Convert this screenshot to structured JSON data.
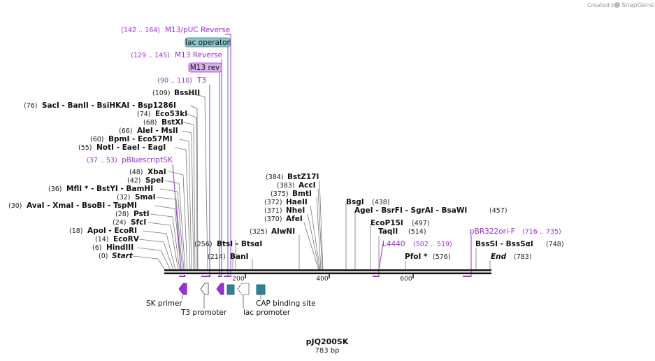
{
  "credit": {
    "prefix": "Created by",
    "brand": "SnapGene"
  },
  "plasmid": {
    "name": "pJQ200SK",
    "length": "783 bp"
  },
  "colors": {
    "purple": "#9b30d9",
    "teal": "#2f8293",
    "teal_light": "#8fc3c9",
    "mauve": "#d9b3ea"
  },
  "top_features": [
    {
      "range": "(142 .. 164)",
      "name": "M13/pUC Reverse"
    },
    {
      "box": "lac operator"
    },
    {
      "range": "(129 .. 145)",
      "name": "M13 Reverse"
    },
    {
      "box": "M13 rev"
    },
    {
      "range": "(90 .. 110)",
      "name": "T3"
    }
  ],
  "left_sites": [
    {
      "pos": "(109)",
      "names": "BssHII"
    },
    {
      "pos": "(76)",
      "names": "SacI   - BanII   - BsiHKAI   - Bsp1286I"
    },
    {
      "pos": "(74)",
      "names": "Eco53kI"
    },
    {
      "pos": "(68)",
      "names": "BstXI"
    },
    {
      "pos": "(66)",
      "names": "AleI   - MslI"
    },
    {
      "pos": "(60)",
      "names": "BpmI   - Eco57MI"
    },
    {
      "pos": "(55)",
      "names": "NotI   - EaeI   - EagI"
    },
    {
      "pos": "(37 .. 53)",
      "names": "pBluescriptSK"
    },
    {
      "pos": "(48)",
      "names": "XbaI"
    },
    {
      "pos": "(42)",
      "names": "SpeI"
    },
    {
      "pos": "(36)",
      "names": "MflI *  - BstYI   - BamHI"
    },
    {
      "pos": "(32)",
      "names": "SmaI"
    },
    {
      "pos": "(30)",
      "names": "AvaI   - XmaI   - BsoBI   - TspMI"
    },
    {
      "pos": "(28)",
      "names": "PstI"
    },
    {
      "pos": "(24)",
      "names": "SfcI"
    },
    {
      "pos": "(18)",
      "names": "ApoI   - EcoRI"
    },
    {
      "pos": "(14)",
      "names": "EcoRV"
    },
    {
      "pos": "(6)",
      "names": "HindIII"
    },
    {
      "pos": "(0)",
      "names": "Start"
    }
  ],
  "mid_sites": [
    {
      "pos": "(256)",
      "names": "BtsI   - BtsαI"
    },
    {
      "pos": "(214)",
      "names": "BanI"
    },
    {
      "pos": "(325)",
      "names": "AlwNI"
    },
    {
      "pos": "(384)",
      "names": "BstZ17I"
    },
    {
      "pos": "(383)",
      "names": "AccI"
    },
    {
      "pos": "(375)",
      "names": "BmtI"
    },
    {
      "pos": "(372)",
      "names": "HaeII"
    },
    {
      "pos": "(371)",
      "names": "NheI"
    },
    {
      "pos": "(370)",
      "names": "AfeI"
    }
  ],
  "right_sites": [
    {
      "names": "BsgI",
      "pos": "(438)"
    },
    {
      "names": "AgeI   - BsrFI   - SgrAI   - BsaWI",
      "pos": "(457)"
    },
    {
      "names": "EcoP15I",
      "pos": "(497)"
    },
    {
      "names": "TaqII",
      "pos": "(514)"
    },
    {
      "names": "L4440",
      "pos": "(502 .. 519)"
    },
    {
      "names": "PfoI *",
      "pos": "(576)"
    },
    {
      "names": "pBR322ori-F",
      "pos": "(716 .. 735)"
    },
    {
      "names": "BssSI   - BssSαI",
      "pos": "(748)"
    },
    {
      "names": "End",
      "pos": "(783)"
    }
  ],
  "ruler": {
    "ticks": [
      "200",
      "400",
      "600"
    ]
  },
  "bottom_features": [
    {
      "name": "SK primer"
    },
    {
      "name": "T3 promoter"
    },
    {
      "name": "CAP binding site"
    },
    {
      "name": "lac promoter"
    }
  ]
}
